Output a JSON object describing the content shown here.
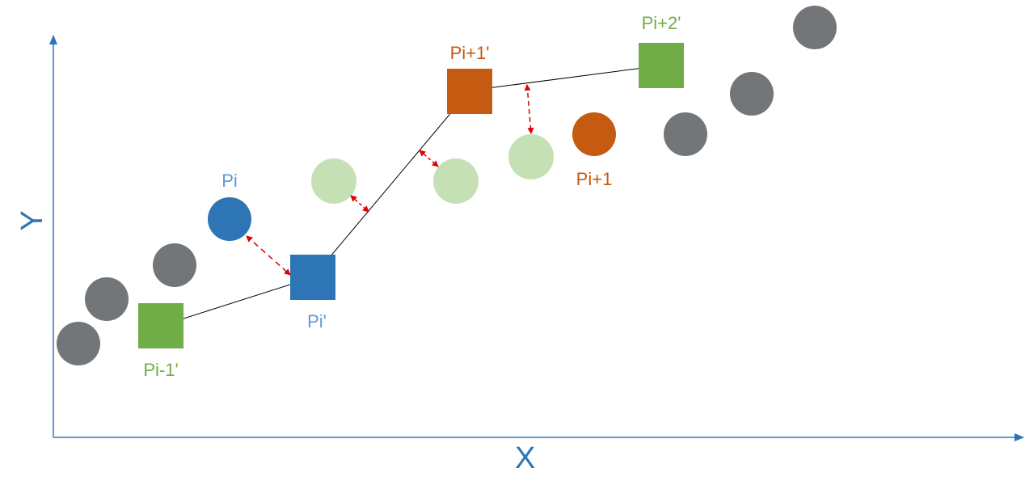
{
  "colors": {
    "axis": "#2e75b6",
    "gray_point": "#737679",
    "blue": "#2e75b6",
    "orange": "#c55a11",
    "green": "#70ad47",
    "light_green": "#c5e0b4",
    "polyline": "#000000",
    "distance_arrow": "#e00000"
  },
  "axes": {
    "x_label": "X",
    "y_label": "Y"
  },
  "labels": {
    "pi": "Pi",
    "pi_next": "Pi+1",
    "pi_prev_prime": "Pi-1'",
    "pi_prime": "Pi'",
    "pi_next_prime": "Pi+1'",
    "pi_next2_prime": "Pi+2'"
  }
}
